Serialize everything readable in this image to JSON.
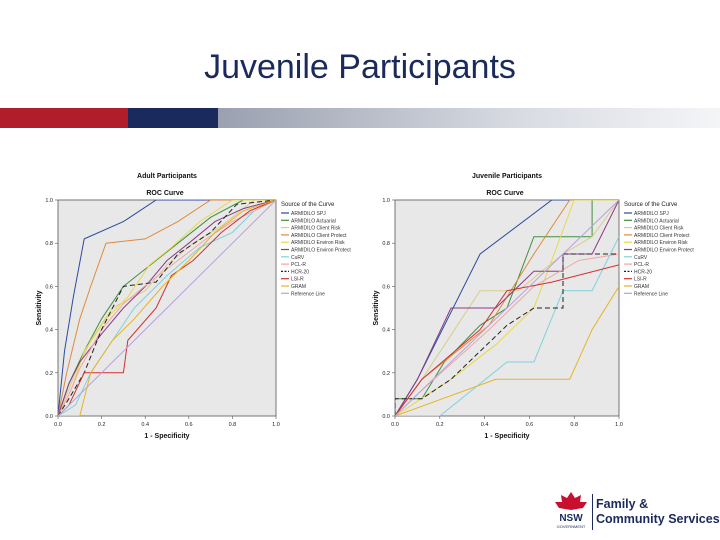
{
  "slide": {
    "title": "Juvenile Participants"
  },
  "colors": {
    "title": "#1b2a5c",
    "bar_red": "#b21d2b",
    "bar_navy": "#1b2a5c",
    "plot_bg": "#e8e8e8"
  },
  "logo": {
    "icon": "waratah-flower-icon",
    "nsw_text": "NSW",
    "govt_text": "GOVERNMENT",
    "line1": "Family &",
    "line2": "Community Services"
  },
  "chart_data": [
    {
      "type": "line",
      "title": "Adult Participants",
      "subtitle": "ROC Curve",
      "xlabel": "1 - Specificity",
      "ylabel": "Sensitivity",
      "xlim": [
        0,
        1
      ],
      "ylim": [
        0,
        1
      ],
      "x_ticks": [
        "0.0",
        "0.2",
        "0.4",
        "0.6",
        "0.8",
        "1.0"
      ],
      "y_ticks": [
        "0.0",
        "0.2",
        "0.4",
        "0.6",
        "0.8",
        "1.0"
      ],
      "grid": false,
      "legend_title": "Source of the Curve",
      "legend_position": "right",
      "series": [
        {
          "name": "ARMIDILO SPJ",
          "color": "#2a4a9e",
          "dash": "",
          "points": [
            [
              0,
              0
            ],
            [
              0.03,
              0.3
            ],
            [
              0.07,
              0.55
            ],
            [
              0.12,
              0.82
            ],
            [
              0.3,
              0.9
            ],
            [
              0.45,
              1.0
            ],
            [
              1,
              1
            ]
          ]
        },
        {
          "name": "ARMIDILO Actuarial",
          "color": "#3f8f3f",
          "dash": "",
          "points": [
            [
              0,
              0
            ],
            [
              0.05,
              0.15
            ],
            [
              0.12,
              0.3
            ],
            [
              0.2,
              0.45
            ],
            [
              0.3,
              0.6
            ],
            [
              0.4,
              0.68
            ],
            [
              0.55,
              0.8
            ],
            [
              0.7,
              0.92
            ],
            [
              0.85,
              1.0
            ],
            [
              1,
              1
            ]
          ]
        },
        {
          "name": "ARMIDILO Client Risk",
          "color": "#d9cc8c",
          "dash": "",
          "points": [
            [
              0,
              0
            ],
            [
              0.08,
              0.2
            ],
            [
              0.15,
              0.35
            ],
            [
              0.25,
              0.5
            ],
            [
              0.4,
              0.58
            ],
            [
              0.5,
              0.7
            ],
            [
              0.62,
              0.8
            ],
            [
              0.75,
              0.88
            ],
            [
              0.9,
              1.0
            ],
            [
              1,
              1
            ]
          ]
        },
        {
          "name": "ARMIDILO Client Protect",
          "color": "#e08a3a",
          "dash": "",
          "points": [
            [
              0,
              0
            ],
            [
              0.04,
              0.2
            ],
            [
              0.1,
              0.45
            ],
            [
              0.15,
              0.6
            ],
            [
              0.22,
              0.8
            ],
            [
              0.4,
              0.82
            ],
            [
              0.55,
              0.9
            ],
            [
              0.7,
              1.0
            ],
            [
              1,
              1
            ]
          ]
        },
        {
          "name": "ARMIDILO Environ Risk",
          "color": "#e8d84a",
          "dash": "",
          "points": [
            [
              0,
              0
            ],
            [
              0.06,
              0.12
            ],
            [
              0.12,
              0.3
            ],
            [
              0.22,
              0.45
            ],
            [
              0.32,
              0.55
            ],
            [
              0.42,
              0.7
            ],
            [
              0.52,
              0.78
            ],
            [
              0.65,
              0.9
            ],
            [
              0.8,
              1.0
            ],
            [
              1,
              1
            ]
          ]
        },
        {
          "name": "ARMIDILO Environ Protect",
          "color": "#8a3a8a",
          "dash": "",
          "points": [
            [
              0,
              0
            ],
            [
              0.05,
              0.15
            ],
            [
              0.1,
              0.25
            ],
            [
              0.2,
              0.38
            ],
            [
              0.3,
              0.5
            ],
            [
              0.4,
              0.6
            ],
            [
              0.5,
              0.72
            ],
            [
              0.6,
              0.8
            ],
            [
              0.72,
              0.9
            ],
            [
              0.85,
              0.96
            ],
            [
              1,
              1
            ]
          ]
        },
        {
          "name": "CuRV",
          "color": "#7fd0e0",
          "dash": "",
          "points": [
            [
              0,
              0
            ],
            [
              0.08,
              0.05
            ],
            [
              0.15,
              0.2
            ],
            [
              0.25,
              0.35
            ],
            [
              0.35,
              0.5
            ],
            [
              0.5,
              0.65
            ],
            [
              0.65,
              0.78
            ],
            [
              0.8,
              0.85
            ],
            [
              0.9,
              0.95
            ],
            [
              1,
              1
            ]
          ]
        },
        {
          "name": "PCL-R",
          "color": "#f2a6a6",
          "dash": "",
          "points": [
            [
              0,
              0
            ],
            [
              0.05,
              0.1
            ],
            [
              0.1,
              0.22
            ],
            [
              0.2,
              0.4
            ],
            [
              0.3,
              0.52
            ],
            [
              0.42,
              0.62
            ],
            [
              0.55,
              0.72
            ],
            [
              0.68,
              0.82
            ],
            [
              0.8,
              0.9
            ],
            [
              1,
              1
            ]
          ]
        },
        {
          "name": "HCR-20",
          "color": "#222222",
          "dash": "5,3",
          "points": [
            [
              0,
              0
            ],
            [
              0.05,
              0.08
            ],
            [
              0.12,
              0.2
            ],
            [
              0.2,
              0.4
            ],
            [
              0.3,
              0.6
            ],
            [
              0.45,
              0.62
            ],
            [
              0.55,
              0.75
            ],
            [
              0.7,
              0.85
            ],
            [
              0.82,
              0.98
            ],
            [
              1,
              1
            ]
          ]
        },
        {
          "name": "LSI-R",
          "color": "#d03030",
          "dash": "",
          "points": [
            [
              0,
              0
            ],
            [
              0.05,
              0.05
            ],
            [
              0.12,
              0.2
            ],
            [
              0.2,
              0.2
            ],
            [
              0.3,
              0.2
            ],
            [
              0.32,
              0.35
            ],
            [
              0.45,
              0.5
            ],
            [
              0.52,
              0.65
            ],
            [
              0.62,
              0.72
            ],
            [
              0.75,
              0.85
            ],
            [
              0.88,
              0.95
            ],
            [
              1,
              1
            ]
          ]
        },
        {
          "name": "GRAM",
          "color": "#e6b422",
          "dash": "",
          "points": [
            [
              0,
              0
            ],
            [
              0.1,
              0.0
            ],
            [
              0.15,
              0.2
            ],
            [
              0.25,
              0.35
            ],
            [
              0.35,
              0.45
            ],
            [
              0.48,
              0.6
            ],
            [
              0.6,
              0.72
            ],
            [
              0.72,
              0.85
            ],
            [
              0.85,
              0.95
            ],
            [
              1,
              1
            ]
          ]
        },
        {
          "name": "Reference Line",
          "color": "#b8a0e0",
          "dash": "",
          "points": [
            [
              0,
              0
            ],
            [
              1,
              1
            ]
          ]
        }
      ]
    },
    {
      "type": "line",
      "title": "Juvenile Participants",
      "subtitle": "ROC Curve",
      "xlabel": "1 - Specificity",
      "ylabel": "Sensitivity",
      "xlim": [
        0,
        1
      ],
      "ylim": [
        0,
        1
      ],
      "x_ticks": [
        "0.0",
        "0.2",
        "0.4",
        "0.6",
        "0.8",
        "1.0"
      ],
      "y_ticks": [
        "0.0",
        "0.2",
        "0.4",
        "0.6",
        "0.8",
        "1.0"
      ],
      "grid": false,
      "legend_title": "Source of the Curve",
      "legend_position": "right",
      "series": [
        {
          "name": "ARMIDILO SPJ",
          "color": "#2a4a9e",
          "dash": "",
          "points": [
            [
              0,
              0
            ],
            [
              0.1,
              0.17
            ],
            [
              0.38,
              0.75
            ],
            [
              0.7,
              1.0
            ],
            [
              1,
              1
            ]
          ]
        },
        {
          "name": "ARMIDILO Actuarial",
          "color": "#3f8f3f",
          "dash": "",
          "points": [
            [
              0,
              0
            ],
            [
              0,
              0.08
            ],
            [
              0.12,
              0.08
            ],
            [
              0.22,
              0.25
            ],
            [
              0.38,
              0.42
            ],
            [
              0.5,
              0.5
            ],
            [
              0.62,
              0.83
            ],
            [
              0.88,
              0.83
            ],
            [
              0.88,
              1.0
            ],
            [
              1,
              1
            ]
          ]
        },
        {
          "name": "ARMIDILO Client Risk",
          "color": "#d9cc8c",
          "dash": "",
          "points": [
            [
              0,
              0
            ],
            [
              0.12,
              0.17
            ],
            [
              0.38,
              0.58
            ],
            [
              0.55,
              0.58
            ],
            [
              0.75,
              0.75
            ],
            [
              0.88,
              0.83
            ],
            [
              1,
              1
            ]
          ]
        },
        {
          "name": "ARMIDILO Client Protect",
          "color": "#e08a3a",
          "dash": "",
          "points": [
            [
              0,
              0
            ],
            [
              0.12,
              0.17
            ],
            [
              0.42,
              0.42
            ],
            [
              0.62,
              0.75
            ],
            [
              0.78,
              1.0
            ],
            [
              1,
              1
            ]
          ]
        },
        {
          "name": "ARMIDILO Environ Risk",
          "color": "#e8d84a",
          "dash": "",
          "points": [
            [
              0,
              0
            ],
            [
              0.25,
              0.17
            ],
            [
              0.45,
              0.33
            ],
            [
              0.62,
              0.5
            ],
            [
              0.8,
              1.0
            ],
            [
              1,
              1
            ]
          ]
        },
        {
          "name": "ARMIDILO Environ Protect",
          "color": "#8a3a8a",
          "dash": "",
          "points": [
            [
              0,
              0
            ],
            [
              0.1,
              0.17
            ],
            [
              0.25,
              0.5
            ],
            [
              0.45,
              0.5
            ],
            [
              0.62,
              0.67
            ],
            [
              0.75,
              0.67
            ],
            [
              0.75,
              0.75
            ],
            [
              0.88,
              0.75
            ],
            [
              1,
              1
            ]
          ]
        },
        {
          "name": "CuRV",
          "color": "#7fd0e0",
          "dash": "",
          "points": [
            [
              0,
              0
            ],
            [
              0.2,
              0.0
            ],
            [
              0.5,
              0.25
            ],
            [
              0.62,
              0.25
            ],
            [
              0.75,
              0.58
            ],
            [
              0.88,
              0.58
            ],
            [
              1,
              0.83
            ]
          ]
        },
        {
          "name": "PCL-R",
          "color": "#f2a6a6",
          "dash": "",
          "points": [
            [
              0,
              0
            ],
            [
              0.12,
              0.12
            ],
            [
              0.42,
              0.4
            ],
            [
              0.62,
              0.6
            ],
            [
              0.82,
              0.72
            ],
            [
              1,
              0.75
            ]
          ]
        },
        {
          "name": "HCR-20",
          "color": "#222222",
          "dash": "5,3",
          "points": [
            [
              0,
              0
            ],
            [
              0,
              0.08
            ],
            [
              0.12,
              0.08
            ],
            [
              0.25,
              0.17
            ],
            [
              0.5,
              0.42
            ],
            [
              0.62,
              0.5
            ],
            [
              0.75,
              0.5
            ],
            [
              0.75,
              0.75
            ],
            [
              1,
              0.75
            ]
          ]
        },
        {
          "name": "LSI-R",
          "color": "#d03030",
          "dash": "",
          "points": [
            [
              0,
              0
            ],
            [
              0.12,
              0.17
            ],
            [
              0.38,
              0.4
            ],
            [
              0.5,
              0.58
            ],
            [
              0.7,
              0.62
            ],
            [
              1,
              0.7
            ]
          ]
        },
        {
          "name": "GRAM",
          "color": "#e6b422",
          "dash": "",
          "points": [
            [
              0,
              0
            ],
            [
              0.45,
              0.17
            ],
            [
              0.78,
              0.17
            ],
            [
              0.88,
              0.4
            ],
            [
              1,
              0.6
            ]
          ]
        },
        {
          "name": "Reference Line",
          "color": "#b8a0e0",
          "dash": "",
          "points": [
            [
              0,
              0
            ],
            [
              1,
              1
            ]
          ]
        }
      ]
    }
  ]
}
